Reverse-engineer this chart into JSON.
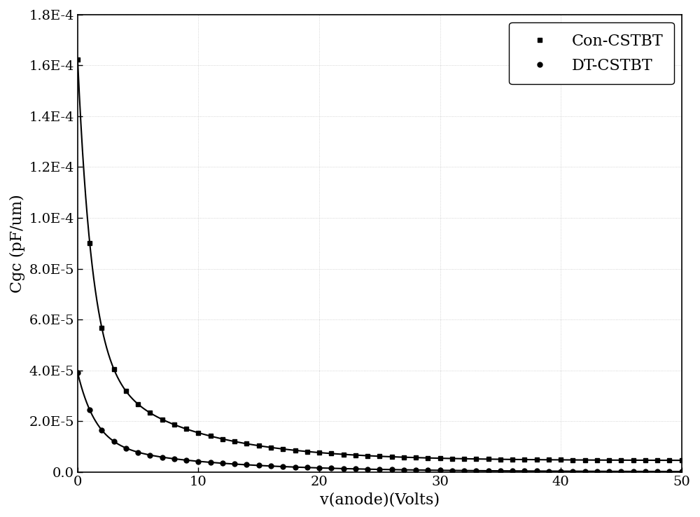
{
  "xlabel": "v(anode)(Volts)",
  "ylabel": "Cgc (pF/um)",
  "xlim": [
    0,
    50
  ],
  "ylim": [
    0.0,
    0.00018
  ],
  "yticks": [
    0.0,
    2e-05,
    4e-05,
    6e-05,
    8e-05,
    0.0001,
    0.00012,
    0.00014,
    0.00016,
    0.00018
  ],
  "ytick_labels": [
    "0.0",
    "2.0E-5",
    "4.0E-5",
    "6.0E-5",
    "8.0E-5",
    "1.0E-4",
    "1.2E-4",
    "1.4E-4",
    "1.6E-4",
    "1.8E-4"
  ],
  "xticks": [
    0,
    10,
    20,
    30,
    40,
    50
  ],
  "line_color": "#000000",
  "background_color": "#ffffff",
  "legend_labels": [
    "Con-CSTBT",
    "DT-CSTBT"
  ],
  "marker_size_sq": 5,
  "marker_size_circ": 5,
  "line_width": 1.5,
  "axis_font_size": 16,
  "tick_font_size": 14,
  "legend_font_size": 16,
  "con_A": 0.000158,
  "con_b": 1.0,
  "con_n": 1.0,
  "con_c": 4.5e-06,
  "dt_A": 3.9e-05,
  "dt_b": 0.85,
  "dt_n": 1.05,
  "dt_c": 1.5e-07
}
